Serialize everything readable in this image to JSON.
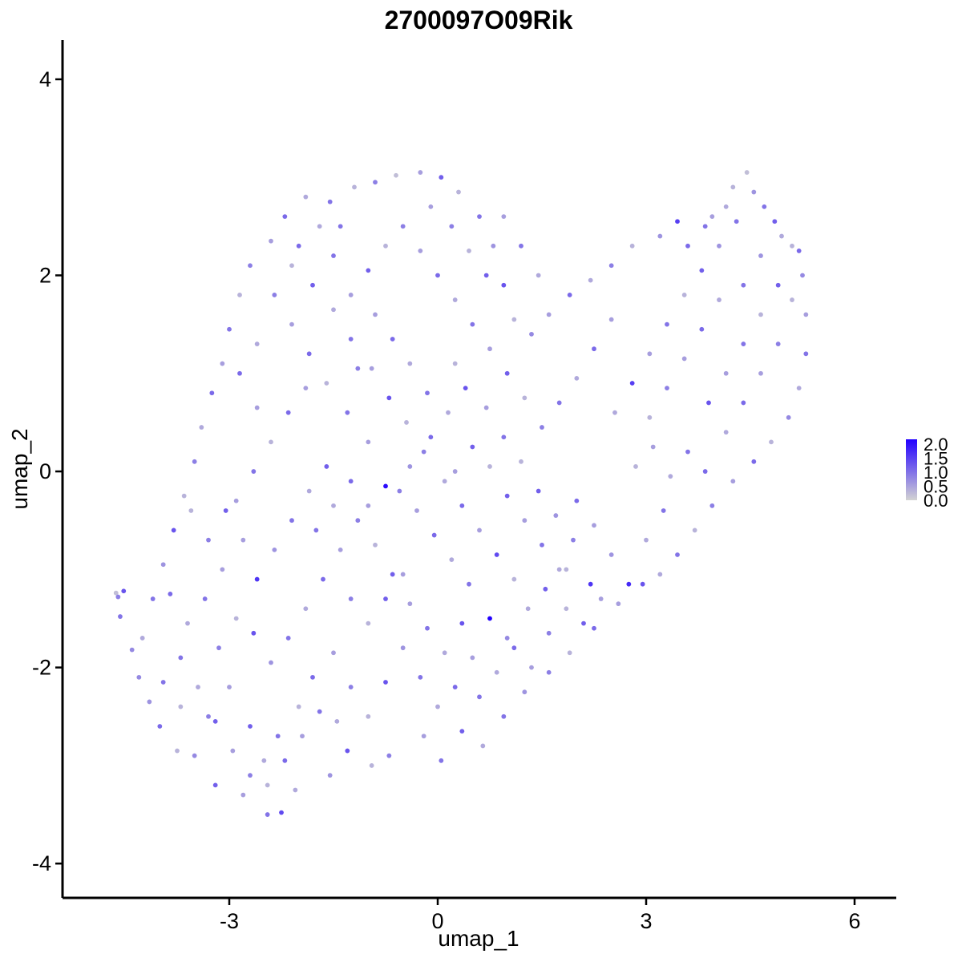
{
  "chart_data": {
    "type": "scatter",
    "title": "2700097O09Rik",
    "xlabel": "umap_1",
    "ylabel": "umap_2",
    "xlim": [
      -5.4,
      6.6
    ],
    "ylim": [
      -4.35,
      4.4
    ],
    "x_ticks": [
      {
        "value": -3,
        "label": "-3"
      },
      {
        "value": 0,
        "label": "0"
      },
      {
        "value": 3,
        "label": "3"
      },
      {
        "value": 6,
        "label": "6"
      }
    ],
    "y_ticks": [
      {
        "value": -4,
        "label": "-4"
      },
      {
        "value": -2,
        "label": "-2"
      },
      {
        "value": 0,
        "label": "0"
      },
      {
        "value": 2,
        "label": "2"
      },
      {
        "value": 4,
        "label": "4"
      }
    ],
    "grid": false,
    "legend": {
      "placement": "right",
      "range": [
        0,
        2
      ],
      "labels": [
        "2.0",
        "1.5",
        "1.0",
        "0.5",
        "0.0"
      ],
      "low_color": "#d3d3d3",
      "high_color": "#2200ff"
    },
    "points": [
      [
        -4.6,
        -1.28,
        0.8
      ],
      [
        -4.63,
        -1.24,
        0.2
      ],
      [
        -4.57,
        -1.48,
        0.9
      ],
      [
        -4.4,
        -1.82,
        0.7
      ],
      [
        -4.52,
        -1.22,
        1.2
      ],
      [
        -4.15,
        -2.35,
        0.6
      ],
      [
        -3.95,
        -2.15,
        0.9
      ],
      [
        -3.7,
        -2.4,
        0.3
      ],
      [
        -3.5,
        -2.9,
        0.7
      ],
      [
        -3.2,
        -3.2,
        1.1
      ],
      [
        -2.8,
        -3.3,
        0.5
      ],
      [
        -2.45,
        -3.5,
        0.9
      ],
      [
        -2.25,
        -3.48,
        1.3
      ],
      [
        -2.05,
        -3.25,
        0.4
      ],
      [
        -1.55,
        -3.1,
        0.6
      ],
      [
        -1.3,
        -2.85,
        1.2
      ],
      [
        -0.95,
        -3.0,
        0.3
      ],
      [
        -0.7,
        -2.9,
        0.8
      ],
      [
        -0.2,
        -2.7,
        0.5
      ],
      [
        0.05,
        -2.95,
        0.9
      ],
      [
        0.35,
        -2.65,
        1.1
      ],
      [
        0.65,
        -2.8,
        0.4
      ],
      [
        0.95,
        -2.5,
        0.9
      ],
      [
        1.25,
        -2.25,
        0.6
      ],
      [
        1.6,
        -2.05,
        0.8
      ],
      [
        1.9,
        -1.85,
        0.3
      ],
      [
        2.25,
        -1.6,
        1.0
      ],
      [
        2.6,
        -1.35,
        0.5
      ],
      [
        2.95,
        -1.15,
        1.2
      ],
      [
        3.2,
        -1.05,
        0.4
      ],
      [
        3.45,
        -0.85,
        0.9
      ],
      [
        3.7,
        -0.6,
        0.3
      ],
      [
        3.95,
        -0.35,
        0.8
      ],
      [
        4.25,
        -0.1,
        0.5
      ],
      [
        4.55,
        0.1,
        1.0
      ],
      [
        4.8,
        0.3,
        0.3
      ],
      [
        5.05,
        0.55,
        0.7
      ],
      [
        5.2,
        0.85,
        0.4
      ],
      [
        5.3,
        1.2,
        0.9
      ],
      [
        5.3,
        1.6,
        0.5
      ],
      [
        5.25,
        2.0,
        0.7
      ],
      [
        5.1,
        2.3,
        0.3
      ],
      [
        4.85,
        2.55,
        1.1
      ],
      [
        4.55,
        2.85,
        0.6
      ],
      [
        4.45,
        3.05,
        0.2
      ],
      [
        4.15,
        2.7,
        0.4
      ],
      [
        3.85,
        2.5,
        0.9
      ],
      [
        3.45,
        2.55,
        1.4
      ],
      [
        3.2,
        2.4,
        0.6
      ],
      [
        2.8,
        2.3,
        0.3
      ],
      [
        2.5,
        2.1,
        0.8
      ],
      [
        2.2,
        1.95,
        0.4
      ],
      [
        1.9,
        1.8,
        1.0
      ],
      [
        1.6,
        1.6,
        0.5
      ],
      [
        1.35,
        1.4,
        0.7
      ],
      [
        1.1,
        1.55,
        0.3
      ],
      [
        0.95,
        1.9,
        1.2
      ],
      [
        0.8,
        2.3,
        0.6
      ],
      [
        0.6,
        2.6,
        0.9
      ],
      [
        0.3,
        2.85,
        0.3
      ],
      [
        0.05,
        3.0,
        1.1
      ],
      [
        -0.25,
        3.05,
        0.5
      ],
      [
        -0.6,
        3.02,
        0.2
      ],
      [
        -0.9,
        2.95,
        0.8
      ],
      [
        -1.2,
        2.9,
        0.3
      ],
      [
        -1.55,
        2.75,
        0.9
      ],
      [
        -1.9,
        2.8,
        0.4
      ],
      [
        -2.2,
        2.6,
        1.0
      ],
      [
        -2.4,
        2.35,
        0.5
      ],
      [
        -2.7,
        2.1,
        0.8
      ],
      [
        -2.85,
        1.8,
        0.3
      ],
      [
        -3.0,
        1.45,
        0.9
      ],
      [
        -3.1,
        1.1,
        0.5
      ],
      [
        -3.25,
        0.8,
        1.0
      ],
      [
        -3.4,
        0.45,
        0.4
      ],
      [
        -3.5,
        0.1,
        0.8
      ],
      [
        -3.65,
        -0.25,
        0.3
      ],
      [
        -3.8,
        -0.6,
        1.2
      ],
      [
        -3.95,
        -0.95,
        0.6
      ],
      [
        -4.1,
        -1.3,
        0.9
      ],
      [
        -4.25,
        -1.7,
        0.4
      ],
      [
        -4.3,
        -2.1,
        0.7
      ],
      [
        -4.0,
        -2.6,
        1.0
      ],
      [
        -3.75,
        -2.85,
        0.3
      ],
      [
        -3.3,
        -2.5,
        0.8
      ],
      [
        -3.0,
        -2.2,
        0.5
      ],
      [
        -2.7,
        -2.6,
        1.1
      ],
      [
        -2.5,
        -2.95,
        0.4
      ],
      [
        -2.3,
        -2.7,
        0.9
      ],
      [
        -2.0,
        -2.4,
        0.3
      ],
      [
        -1.8,
        -2.1,
        1.0
      ],
      [
        -1.5,
        -1.85,
        0.5
      ],
      [
        -1.25,
        -2.2,
        0.8
      ],
      [
        -1.0,
        -2.5,
        0.3
      ],
      [
        -0.75,
        -2.15,
        1.2
      ],
      [
        -0.5,
        -1.8,
        0.6
      ],
      [
        -0.25,
        -2.1,
        0.9
      ],
      [
        0.0,
        -2.4,
        0.4
      ],
      [
        0.25,
        -2.2,
        1.0
      ],
      [
        0.5,
        -1.9,
        0.5
      ],
      [
        0.75,
        -1.5,
        2.0
      ],
      [
        1.0,
        -1.7,
        0.7
      ],
      [
        1.3,
        -1.4,
        0.4
      ],
      [
        1.55,
        -1.2,
        1.1
      ],
      [
        1.85,
        -1.0,
        0.3
      ],
      [
        2.2,
        -1.15,
        1.5
      ],
      [
        2.5,
        -0.85,
        0.6
      ],
      [
        2.75,
        -1.15,
        1.6
      ],
      [
        3.0,
        -0.7,
        0.4
      ],
      [
        3.25,
        -0.4,
        0.9
      ],
      [
        -0.75,
        -0.15,
        1.9
      ],
      [
        -0.4,
        0.05,
        0.6
      ],
      [
        -0.1,
        0.35,
        1.0
      ],
      [
        0.15,
        0.6,
        0.4
      ],
      [
        0.4,
        0.85,
        1.2
      ],
      [
        0.7,
        0.65,
        0.5
      ],
      [
        0.95,
        0.35,
        0.9
      ],
      [
        1.2,
        0.1,
        0.3
      ],
      [
        1.45,
        -0.2,
        1.1
      ],
      [
        1.7,
        -0.45,
        0.6
      ],
      [
        1.95,
        -0.7,
        0.8
      ],
      [
        -1.0,
        0.3,
        0.5
      ],
      [
        -1.3,
        0.6,
        0.9
      ],
      [
        -1.6,
        0.9,
        0.3
      ],
      [
        -1.85,
        1.2,
        1.0
      ],
      [
        -2.1,
        1.5,
        0.5
      ],
      [
        -2.35,
        1.8,
        0.8
      ],
      [
        -2.1,
        2.1,
        0.3
      ],
      [
        -1.8,
        1.9,
        1.1
      ],
      [
        -1.5,
        1.65,
        0.4
      ],
      [
        -1.25,
        1.35,
        0.9
      ],
      [
        -0.95,
        1.05,
        0.5
      ],
      [
        -0.7,
        0.75,
        1.2
      ],
      [
        -0.45,
        0.5,
        0.3
      ],
      [
        -0.2,
        0.2,
        0.8
      ],
      [
        0.1,
        -0.1,
        0.4
      ],
      [
        0.35,
        -0.35,
        1.0
      ],
      [
        0.6,
        -0.6,
        0.5
      ],
      [
        0.85,
        -0.85,
        1.3
      ],
      [
        1.1,
        -1.1,
        0.3
      ],
      [
        -2.6,
        -1.1,
        1.5
      ],
      [
        -2.35,
        -0.8,
        0.6
      ],
      [
        -2.1,
        -0.5,
        0.9
      ],
      [
        -1.85,
        -0.2,
        0.4
      ],
      [
        -1.6,
        0.05,
        1.1
      ],
      [
        -2.9,
        -0.3,
        0.5
      ],
      [
        -2.65,
        0.0,
        0.9
      ],
      [
        -2.4,
        0.3,
        0.3
      ],
      [
        -2.15,
        0.6,
        1.0
      ],
      [
        -1.9,
        0.85,
        0.5
      ],
      [
        -3.15,
        -1.8,
        0.8
      ],
      [
        -2.9,
        -1.5,
        0.3
      ],
      [
        -2.65,
        -1.65,
        1.2
      ],
      [
        -2.4,
        -1.95,
        0.6
      ],
      [
        -2.15,
        -1.7,
        0.9
      ],
      [
        -1.9,
        -1.4,
        0.4
      ],
      [
        -1.65,
        -1.1,
        1.0
      ],
      [
        -1.4,
        -0.8,
        0.5
      ],
      [
        -1.15,
        -0.5,
        0.8
      ],
      [
        -0.9,
        -0.75,
        0.3
      ],
      [
        -0.65,
        -1.05,
        1.1
      ],
      [
        -0.4,
        -1.35,
        0.5
      ],
      [
        -0.15,
        -1.6,
        0.9
      ],
      [
        0.1,
        -1.85,
        0.4
      ],
      [
        0.35,
        -1.55,
        1.2
      ],
      [
        2.55,
        0.6,
        0.4
      ],
      [
        2.8,
        0.9,
        1.4
      ],
      [
        3.05,
        1.2,
        0.5
      ],
      [
        3.3,
        1.5,
        0.9
      ],
      [
        3.55,
        1.8,
        0.3
      ],
      [
        3.8,
        2.05,
        1.1
      ],
      [
        4.05,
        2.3,
        0.6
      ],
      [
        4.3,
        2.55,
        0.9
      ],
      [
        4.05,
        1.75,
        0.4
      ],
      [
        3.8,
        1.45,
        1.0
      ],
      [
        3.55,
        1.15,
        0.5
      ],
      [
        3.3,
        0.85,
        0.8
      ],
      [
        3.05,
        0.55,
        0.3
      ],
      [
        3.9,
        0.7,
        1.2
      ],
      [
        4.15,
        1.0,
        0.5
      ],
      [
        4.4,
        1.3,
        0.9
      ],
      [
        4.65,
        1.6,
        0.3
      ],
      [
        4.9,
        1.9,
        1.1
      ],
      [
        4.65,
        2.2,
        0.6
      ],
      [
        4.4,
        1.9,
        0.9
      ],
      [
        4.15,
        0.4,
        0.4
      ],
      [
        4.4,
        0.7,
        1.0
      ],
      [
        4.65,
        1.0,
        0.5
      ],
      [
        4.9,
        1.3,
        0.8
      ],
      [
        5.1,
        1.75,
        0.3
      ],
      [
        3.6,
        0.2,
        0.9
      ],
      [
        3.35,
        -0.05,
        0.4
      ],
      [
        3.85,
        0.0,
        1.0
      ],
      [
        3.1,
        0.25,
        0.5
      ],
      [
        2.85,
        0.05,
        0.3
      ],
      [
        1.75,
        0.7,
        0.9
      ],
      [
        2.0,
        0.95,
        0.4
      ],
      [
        2.25,
        1.25,
        1.0
      ],
      [
        2.5,
        1.55,
        0.5
      ],
      [
        1.5,
        0.45,
        0.8
      ],
      [
        1.25,
        0.75,
        0.3
      ],
      [
        1.0,
        1.0,
        1.1
      ],
      [
        0.75,
        1.25,
        0.5
      ],
      [
        0.5,
        1.5,
        0.9
      ],
      [
        0.25,
        1.75,
        0.4
      ],
      [
        0.0,
        2.0,
        1.0
      ],
      [
        -0.25,
        2.25,
        0.5
      ],
      [
        -0.5,
        2.5,
        0.8
      ],
      [
        -0.75,
        2.3,
        0.3
      ],
      [
        -1.0,
        2.05,
        1.1
      ],
      [
        -1.25,
        1.8,
        0.5
      ],
      [
        -1.5,
        2.2,
        0.9
      ],
      [
        -2.6,
        1.3,
        0.4
      ],
      [
        -2.85,
        1.0,
        1.0
      ],
      [
        -2.6,
        0.65,
        0.5
      ],
      [
        -3.7,
        -1.9,
        0.9
      ],
      [
        -3.45,
        -2.2,
        0.4
      ],
      [
        -3.2,
        -2.55,
        1.1
      ],
      [
        -2.95,
        -2.85,
        0.5
      ],
      [
        -2.7,
        -3.1,
        0.8
      ],
      [
        -2.45,
        -3.2,
        0.3
      ],
      [
        -2.2,
        -2.95,
        1.0
      ],
      [
        -1.95,
        -2.7,
        0.5
      ],
      [
        -1.7,
        -2.45,
        0.9
      ],
      [
        -1.45,
        -2.55,
        0.4
      ],
      [
        0.6,
        -2.3,
        0.9
      ],
      [
        0.85,
        -2.05,
        0.4
      ],
      [
        1.1,
        -1.8,
        1.0
      ],
      [
        1.35,
        -2.0,
        0.5
      ],
      [
        1.6,
        -1.65,
        0.8
      ],
      [
        1.85,
        -1.4,
        0.3
      ],
      [
        2.1,
        -1.55,
        1.1
      ],
      [
        2.35,
        -1.3,
        0.5
      ],
      [
        0.45,
        -1.15,
        0.9
      ],
      [
        0.2,
        -0.9,
        0.4
      ],
      [
        -0.05,
        -0.65,
        1.0
      ],
      [
        -0.3,
        -0.4,
        0.5
      ],
      [
        -0.55,
        -0.2,
        0.8
      ],
      [
        0.75,
        0.05,
        0.3
      ],
      [
        1.0,
        -0.25,
        1.1
      ],
      [
        1.25,
        -0.5,
        0.5
      ],
      [
        1.5,
        -0.75,
        0.9
      ],
      [
        1.75,
        -1.0,
        0.4
      ],
      [
        2.0,
        -0.3,
        1.0
      ],
      [
        2.25,
        -0.55,
        0.5
      ],
      [
        -1.75,
        -0.6,
        0.9
      ],
      [
        -1.5,
        -0.35,
        0.4
      ],
      [
        -1.25,
        -0.1,
        1.0
      ],
      [
        -1.0,
        -0.35,
        0.5
      ],
      [
        -1.25,
        -1.3,
        0.8
      ],
      [
        -1.0,
        -1.55,
        0.3
      ],
      [
        -0.75,
        -1.3,
        1.1
      ],
      [
        -0.5,
        -1.05,
        0.5
      ],
      [
        -3.35,
        -1.3,
        0.9
      ],
      [
        -3.6,
        -1.55,
        0.4
      ],
      [
        -3.85,
        -1.25,
        1.0
      ],
      [
        -3.1,
        -1.0,
        0.5
      ],
      [
        -3.3,
        -0.7,
        0.8
      ],
      [
        -3.55,
        -0.4,
        0.3
      ],
      [
        -3.05,
        -0.4,
        1.1
      ],
      [
        -2.8,
        -0.7,
        0.5
      ],
      [
        -0.15,
        0.8,
        0.9
      ],
      [
        -0.4,
        1.1,
        0.4
      ],
      [
        -0.65,
        1.35,
        1.0
      ],
      [
        -0.9,
        1.6,
        0.5
      ],
      [
        -1.15,
        1.05,
        0.8
      ],
      [
        0.25,
        1.1,
        0.3
      ],
      [
        0.5,
        0.25,
        1.1
      ],
      [
        0.25,
        0.0,
        0.5
      ],
      [
        -1.4,
        2.5,
        0.9
      ],
      [
        -1.7,
        2.5,
        0.4
      ],
      [
        -2.0,
        2.3,
        1.0
      ],
      [
        -0.1,
        2.7,
        0.5
      ],
      [
        0.2,
        2.5,
        0.8
      ],
      [
        0.45,
        2.25,
        0.3
      ],
      [
        0.7,
        2.0,
        1.1
      ],
      [
        0.95,
        2.6,
        0.5
      ],
      [
        1.2,
        2.3,
        0.9
      ],
      [
        1.45,
        2.0,
        0.4
      ],
      [
        3.6,
        2.3,
        1.0
      ],
      [
        3.95,
        2.6,
        0.5
      ],
      [
        4.25,
        2.9,
        0.3
      ],
      [
        4.7,
        2.7,
        0.9
      ],
      [
        4.95,
        2.4,
        0.4
      ],
      [
        5.2,
        2.25,
        1.0
      ]
    ]
  }
}
